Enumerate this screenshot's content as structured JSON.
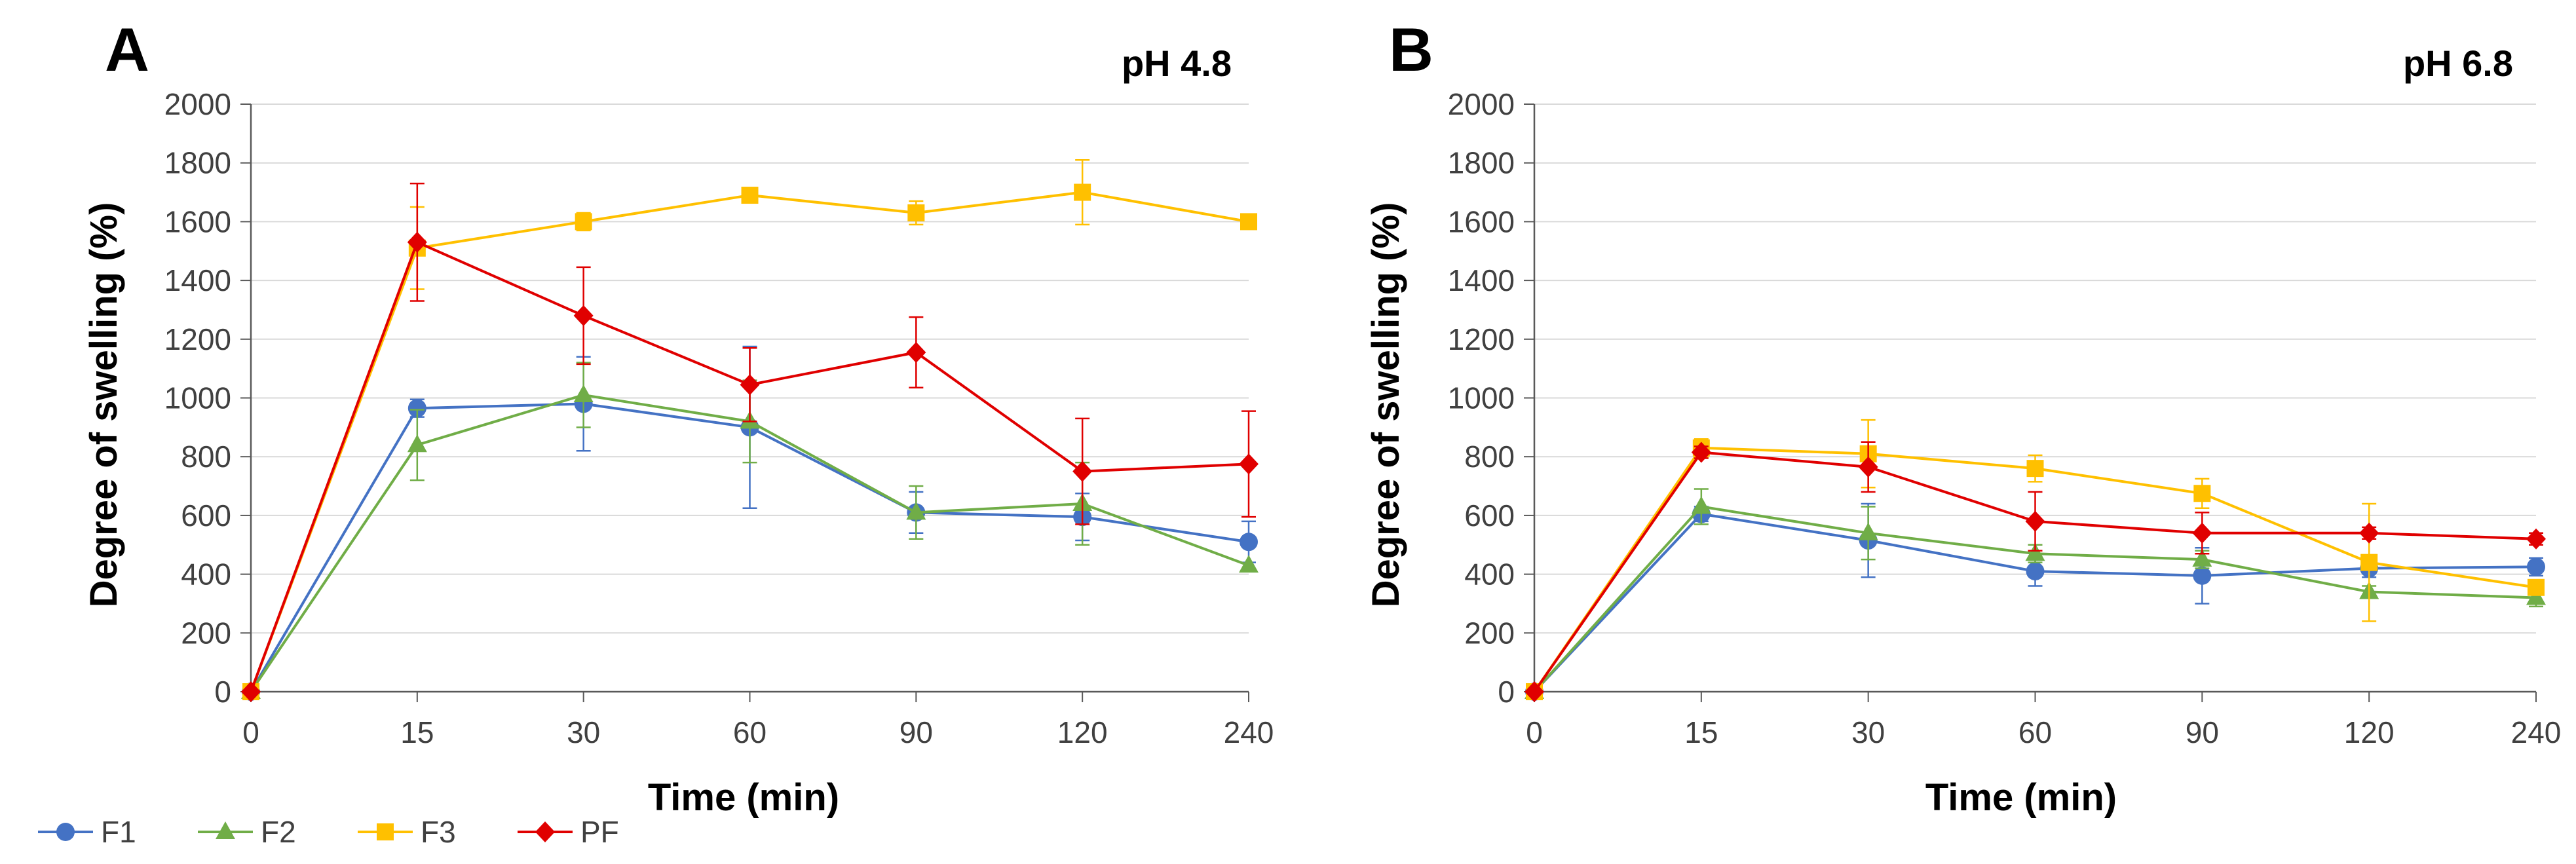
{
  "legend": [
    {
      "name": "F1",
      "color": "#4472C4",
      "marker": "circle"
    },
    {
      "name": "F2",
      "color": "#70AD47",
      "marker": "triangle"
    },
    {
      "name": "F3",
      "color": "#FFC000",
      "marker": "square"
    },
    {
      "name": "PF",
      "color": "#E00000",
      "marker": "diamond"
    }
  ],
  "chart_data": [
    {
      "type": "line",
      "panel": "A",
      "title": "pH 4.8",
      "xlabel": "Time (min)",
      "ylabel": "Degree of swelling (%)",
      "categories": [
        "0",
        "15",
        "30",
        "60",
        "90",
        "120",
        "240"
      ],
      "ylim": [
        0,
        2000
      ],
      "yticks": [
        0,
        200,
        400,
        600,
        800,
        1000,
        1200,
        1400,
        1600,
        1800,
        2000
      ],
      "grid": true,
      "series": [
        {
          "name": "F1",
          "values": [
            0,
            965,
            980,
            900,
            610,
            595,
            510
          ],
          "errors": [
            0,
            30,
            160,
            275,
            70,
            80,
            70
          ]
        },
        {
          "name": "F2",
          "values": [
            0,
            840,
            1010,
            920,
            610,
            640,
            430
          ],
          "errors": [
            0,
            120,
            110,
            140,
            90,
            140,
            0
          ]
        },
        {
          "name": "F3",
          "values": [
            0,
            1510,
            1600,
            1690,
            1630,
            1700,
            1600
          ],
          "errors": [
            0,
            140,
            30,
            0,
            40,
            110,
            0
          ]
        },
        {
          "name": "PF",
          "values": [
            0,
            1530,
            1280,
            1045,
            1155,
            750,
            775
          ],
          "errors": [
            0,
            200,
            165,
            125,
            120,
            180,
            180
          ]
        }
      ]
    },
    {
      "type": "line",
      "panel": "B",
      "title": "pH 6.8",
      "xlabel": "Time (min)",
      "ylabel": "Degree of swelling (%)",
      "categories": [
        "0",
        "15",
        "30",
        "60",
        "90",
        "120",
        "240"
      ],
      "ylim": [
        0,
        2000
      ],
      "yticks": [
        0,
        200,
        400,
        600,
        800,
        1000,
        1200,
        1400,
        1600,
        1800,
        2000
      ],
      "grid": true,
      "series": [
        {
          "name": "F1",
          "values": [
            0,
            605,
            515,
            410,
            395,
            420,
            425
          ],
          "errors": [
            0,
            25,
            125,
            50,
            95,
            30,
            30
          ]
        },
        {
          "name": "F2",
          "values": [
            0,
            630,
            540,
            470,
            450,
            340,
            320
          ],
          "errors": [
            0,
            60,
            90,
            30,
            30,
            20,
            30
          ]
        },
        {
          "name": "F3",
          "values": [
            0,
            830,
            810,
            760,
            675,
            440,
            355
          ],
          "errors": [
            0,
            30,
            115,
            45,
            50,
            200,
            0
          ]
        },
        {
          "name": "PF",
          "values": [
            0,
            815,
            765,
            580,
            540,
            540,
            520
          ],
          "errors": [
            0,
            20,
            85,
            100,
            70,
            20,
            20
          ]
        }
      ]
    }
  ]
}
